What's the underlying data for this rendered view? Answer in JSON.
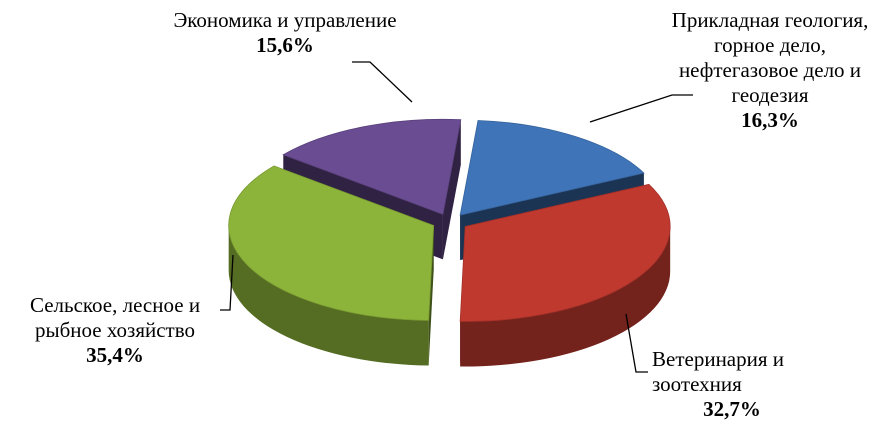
{
  "chart_data": {
    "type": "pie",
    "categories": [
      "Прикладная геология, горное дело, нефтегазовое дело и геодезия",
      "Ветеринария и зоотехния",
      "Сельское, лесное и рыбное хозяйство",
      "Экономика и управление"
    ],
    "values": [
      16.3,
      32.7,
      35.4,
      15.6
    ],
    "value_labels": [
      "16,3%",
      "32,7%",
      "35,4%",
      "15,6%"
    ],
    "colors": [
      "#3f74b8",
      "#c0392f",
      "#8db43a",
      "#6a4c92"
    ]
  }
}
